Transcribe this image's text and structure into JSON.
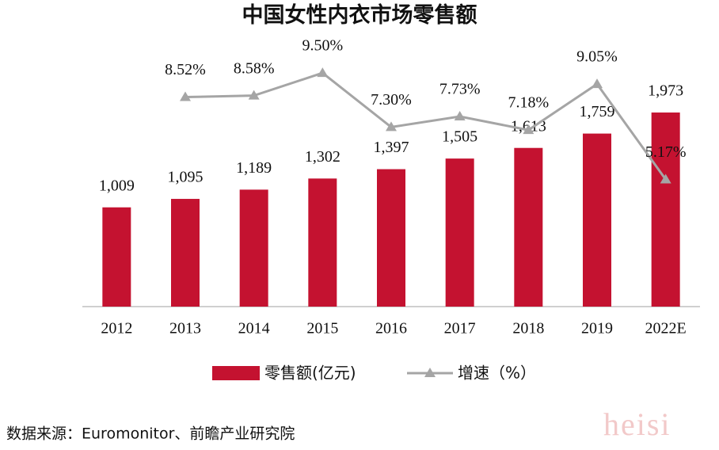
{
  "chart_data": {
    "type": "bar",
    "title": "中国女性内衣市场零售额",
    "categories": [
      "2012",
      "2013",
      "2014",
      "2015",
      "2016",
      "2017",
      "2018",
      "2019",
      "2022E"
    ],
    "series": [
      {
        "name": "零售额(亿元)",
        "type": "bar",
        "color": "#c41230",
        "values": [
          1009,
          1095,
          1189,
          1302,
          1397,
          1505,
          1613,
          1759,
          1973
        ],
        "value_labels": [
          "1,009",
          "1,095",
          "1,189",
          "1,302",
          "1,397",
          "1,505",
          "1,613",
          "1,759",
          "1,973"
        ]
      },
      {
        "name": "增速（%）",
        "type": "line",
        "axis": "y2",
        "color": "#a5a5a5",
        "values": [
          null,
          8.52,
          8.58,
          9.5,
          7.3,
          7.73,
          7.18,
          9.05,
          5.17
        ],
        "value_labels": [
          null,
          "8.52%",
          "8.58%",
          "9.50%",
          "7.30%",
          "7.73%",
          "7.18%",
          "9.05%",
          "5.17%"
        ]
      }
    ],
    "ylim": [
      0,
      2400
    ],
    "y2lim": [
      0,
      9.6
    ],
    "source": "数据来源：Euromonitor、前瞻产业研究院",
    "watermark": "heisi"
  }
}
